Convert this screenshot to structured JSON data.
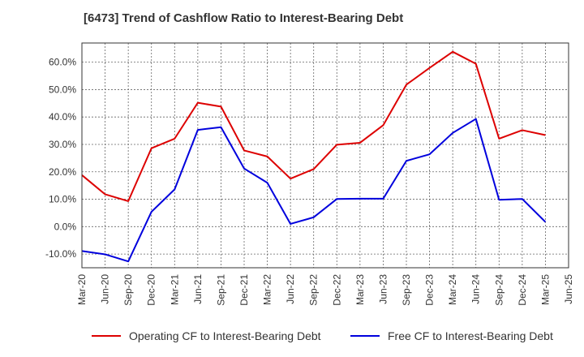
{
  "chart_data": {
    "type": "line",
    "title": "[6473]  Trend of Cashflow Ratio to Interest-Bearing Debt",
    "xlabel": "",
    "ylabel": "",
    "categories": [
      "Mar-20",
      "Jun-20",
      "Sep-20",
      "Dec-20",
      "Mar-21",
      "Jun-21",
      "Sep-21",
      "Dec-21",
      "Mar-22",
      "Jun-22",
      "Sep-22",
      "Dec-22",
      "Mar-23",
      "Jun-23",
      "Sep-23",
      "Dec-23",
      "Mar-24",
      "Jun-24",
      "Sep-24",
      "Dec-24",
      "Mar-25",
      "Jun-25"
    ],
    "y_ticks": [
      "-10.0%",
      "0.0%",
      "10.0%",
      "20.0%",
      "30.0%",
      "40.0%",
      "50.0%",
      "60.0%"
    ],
    "ylim": [
      -15,
      67
    ],
    "grid": true,
    "legend_position": "bottom",
    "series": [
      {
        "name": "Operating CF to Interest-Bearing Debt",
        "color": "#dd0000",
        "values": [
          18.8,
          11.8,
          9.3,
          28.6,
          32.1,
          45.2,
          43.8,
          27.8,
          25.6,
          17.5,
          21.0,
          29.9,
          30.6,
          37.0,
          51.8,
          57.9,
          63.8,
          59.4,
          32.1,
          35.2,
          33.4,
          null
        ]
      },
      {
        "name": "Free CF to Interest-Bearing Debt",
        "color": "#0000dd",
        "values": [
          -8.9,
          -10.1,
          -12.7,
          5.4,
          13.6,
          35.3,
          36.3,
          21.2,
          16.0,
          1.0,
          3.4,
          10.1,
          10.2,
          10.2,
          24.0,
          26.4,
          34.2,
          39.3,
          9.8,
          10.1,
          1.7,
          null
        ]
      }
    ]
  }
}
